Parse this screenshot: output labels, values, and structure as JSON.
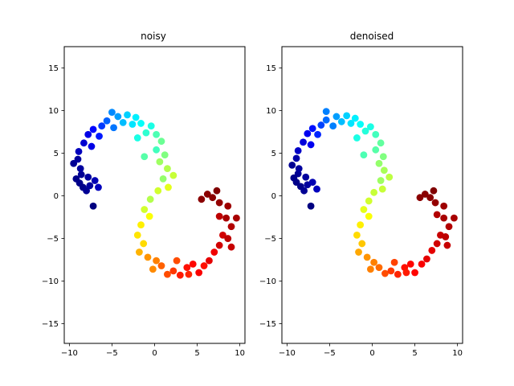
{
  "chart_data": [
    {
      "type": "scatter",
      "title": "noisy",
      "xlabel": "",
      "ylabel": "",
      "xlim": [
        -10.6,
        10.6
      ],
      "ylim": [
        -17.3,
        17.5
      ],
      "xticks": [
        -10,
        -5,
        0,
        5,
        10
      ],
      "yticks": [
        -15,
        -10,
        -5,
        0,
        5,
        10,
        15
      ],
      "xtick_labels": [
        "−10",
        "−5",
        "0",
        "5",
        "10"
      ],
      "ytick_labels": [
        "−15",
        "−10",
        "−5",
        "0",
        "5",
        "10",
        "15"
      ],
      "colormap": "jet",
      "grid": false,
      "legend": "none",
      "points": [
        {
          "x": -9.5,
          "y": 3.8,
          "c": 0.02
        },
        {
          "x": -9.0,
          "y": 4.3,
          "c": 0.03
        },
        {
          "x": -8.6,
          "y": 2.5,
          "c": 0.02
        },
        {
          "x": -8.8,
          "y": 1.5,
          "c": 0.01
        },
        {
          "x": -8.4,
          "y": 1.0,
          "c": 0.01
        },
        {
          "x": -8.0,
          "y": 0.6,
          "c": 0.02
        },
        {
          "x": -7.6,
          "y": 1.2,
          "c": 0.03
        },
        {
          "x": -7.2,
          "y": -1.2,
          "c": 0.0
        },
        {
          "x": -7.8,
          "y": 2.2,
          "c": 0.03
        },
        {
          "x": -9.2,
          "y": 2.0,
          "c": 0.01
        },
        {
          "x": -8.7,
          "y": 3.2,
          "c": 0.03
        },
        {
          "x": -7.0,
          "y": 1.8,
          "c": 0.05
        },
        {
          "x": -6.6,
          "y": 1.0,
          "c": 0.06
        },
        {
          "x": -8.9,
          "y": 5.2,
          "c": 0.06
        },
        {
          "x": -8.3,
          "y": 6.2,
          "c": 0.08
        },
        {
          "x": -7.8,
          "y": 7.2,
          "c": 0.1
        },
        {
          "x": -7.4,
          "y": 5.8,
          "c": 0.1
        },
        {
          "x": -7.2,
          "y": 7.8,
          "c": 0.13
        },
        {
          "x": -6.5,
          "y": 7.0,
          "c": 0.15
        },
        {
          "x": -6.2,
          "y": 8.2,
          "c": 0.18
        },
        {
          "x": -5.6,
          "y": 8.8,
          "c": 0.22
        },
        {
          "x": -5.0,
          "y": 9.8,
          "c": 0.26
        },
        {
          "x": -4.8,
          "y": 8.0,
          "c": 0.24
        },
        {
          "x": -4.3,
          "y": 9.3,
          "c": 0.28
        },
        {
          "x": -3.7,
          "y": 8.6,
          "c": 0.31
        },
        {
          "x": -3.2,
          "y": 9.5,
          "c": 0.33
        },
        {
          "x": -2.6,
          "y": 8.4,
          "c": 0.35
        },
        {
          "x": -2.2,
          "y": 9.2,
          "c": 0.36
        },
        {
          "x": -1.6,
          "y": 8.5,
          "c": 0.38
        },
        {
          "x": -1.0,
          "y": 7.4,
          "c": 0.42
        },
        {
          "x": -0.4,
          "y": 8.2,
          "c": 0.4
        },
        {
          "x": 0.2,
          "y": 7.2,
          "c": 0.45
        },
        {
          "x": 0.8,
          "y": 6.4,
          "c": 0.48
        },
        {
          "x": 0.2,
          "y": 5.4,
          "c": 0.44
        },
        {
          "x": 1.2,
          "y": 4.8,
          "c": 0.5
        },
        {
          "x": 0.6,
          "y": 4.0,
          "c": 0.53
        },
        {
          "x": 1.5,
          "y": 3.2,
          "c": 0.55
        },
        {
          "x": 2.2,
          "y": 2.4,
          "c": 0.57
        },
        {
          "x": 1.0,
          "y": 2.0,
          "c": 0.52
        },
        {
          "x": 1.6,
          "y": 1.0,
          "c": 0.6
        },
        {
          "x": 0.4,
          "y": 0.6,
          "c": 0.58
        },
        {
          "x": -0.5,
          "y": -0.4,
          "c": 0.55
        },
        {
          "x": -1.2,
          "y": -1.6,
          "c": 0.58
        },
        {
          "x": -0.6,
          "y": -2.4,
          "c": 0.62
        },
        {
          "x": -1.6,
          "y": -3.4,
          "c": 0.64
        },
        {
          "x": -2.0,
          "y": -4.6,
          "c": 0.65
        },
        {
          "x": -1.3,
          "y": -5.6,
          "c": 0.66
        },
        {
          "x": -1.8,
          "y": -6.6,
          "c": 0.7
        },
        {
          "x": -0.8,
          "y": -7.2,
          "c": 0.73
        },
        {
          "x": 0.2,
          "y": -7.6,
          "c": 0.75
        },
        {
          "x": -0.2,
          "y": -8.6,
          "c": 0.74
        },
        {
          "x": 0.8,
          "y": -8.2,
          "c": 0.78
        },
        {
          "x": 1.5,
          "y": -9.2,
          "c": 0.8
        },
        {
          "x": 2.2,
          "y": -8.8,
          "c": 0.82
        },
        {
          "x": 3.0,
          "y": -9.3,
          "c": 0.85
        },
        {
          "x": 3.8,
          "y": -8.4,
          "c": 0.86
        },
        {
          "x": 4.5,
          "y": -8.0,
          "c": 0.87
        },
        {
          "x": 5.2,
          "y": -9.0,
          "c": 0.88
        },
        {
          "x": 5.8,
          "y": -8.2,
          "c": 0.86
        },
        {
          "x": 6.4,
          "y": -7.6,
          "c": 0.9
        },
        {
          "x": 7.0,
          "y": -6.6,
          "c": 0.89
        },
        {
          "x": 7.6,
          "y": -5.8,
          "c": 0.92
        },
        {
          "x": 8.0,
          "y": -4.6,
          "c": 0.92
        },
        {
          "x": 8.6,
          "y": -5.0,
          "c": 0.94
        },
        {
          "x": 9.0,
          "y": -3.6,
          "c": 0.95
        },
        {
          "x": 8.4,
          "y": -2.6,
          "c": 0.96
        },
        {
          "x": 9.6,
          "y": -2.6,
          "c": 0.96
        },
        {
          "x": 7.6,
          "y": -2.4,
          "c": 0.94
        },
        {
          "x": 8.6,
          "y": -1.2,
          "c": 0.97
        },
        {
          "x": 7.6,
          "y": -0.8,
          "c": 0.98
        },
        {
          "x": 6.8,
          "y": -0.2,
          "c": 0.99
        },
        {
          "x": 7.3,
          "y": 0.6,
          "c": 1.0
        },
        {
          "x": 6.2,
          "y": 0.2,
          "c": 0.99
        },
        {
          "x": 5.5,
          "y": -0.4,
          "c": 0.99
        },
        {
          "x": 9.0,
          "y": -6.0,
          "c": 0.93
        },
        {
          "x": 4.0,
          "y": -9.2,
          "c": 0.84
        },
        {
          "x": 2.6,
          "y": -7.6,
          "c": 0.8
        },
        {
          "x": -2.0,
          "y": 6.8,
          "c": 0.4
        },
        {
          "x": -1.2,
          "y": 4.6,
          "c": 0.46
        }
      ]
    },
    {
      "type": "scatter",
      "title": "denoised",
      "xlabel": "",
      "ylabel": "",
      "xlim": [
        -10.6,
        10.6
      ],
      "ylim": [
        -17.3,
        17.5
      ],
      "xticks": [
        -10,
        -5,
        0,
        5,
        10
      ],
      "yticks": [
        -15,
        -10,
        -5,
        0,
        5,
        10,
        15
      ],
      "xtick_labels": [
        "−10",
        "−5",
        "0",
        "5",
        "10"
      ],
      "ytick_labels": [
        "−15",
        "−10",
        "−5",
        "0",
        "5",
        "10",
        "15"
      ],
      "colormap": "jet",
      "grid": false,
      "legend": "none",
      "points": [
        {
          "x": -9.4,
          "y": 3.6,
          "c": 0.02
        },
        {
          "x": -8.9,
          "y": 4.4,
          "c": 0.04
        },
        {
          "x": -8.7,
          "y": 2.6,
          "c": 0.02
        },
        {
          "x": -8.9,
          "y": 1.6,
          "c": 0.01
        },
        {
          "x": -8.4,
          "y": 1.1,
          "c": 0.01
        },
        {
          "x": -8.0,
          "y": 0.6,
          "c": 0.02
        },
        {
          "x": -7.6,
          "y": 1.3,
          "c": 0.03
        },
        {
          "x": -7.2,
          "y": -1.2,
          "c": 0.0
        },
        {
          "x": -7.8,
          "y": 2.2,
          "c": 0.03
        },
        {
          "x": -9.2,
          "y": 2.1,
          "c": 0.01
        },
        {
          "x": -8.6,
          "y": 3.2,
          "c": 0.03
        },
        {
          "x": -7.0,
          "y": 1.6,
          "c": 0.05
        },
        {
          "x": -6.5,
          "y": 0.8,
          "c": 0.06
        },
        {
          "x": -8.7,
          "y": 5.3,
          "c": 0.07
        },
        {
          "x": -8.1,
          "y": 6.3,
          "c": 0.09
        },
        {
          "x": -7.6,
          "y": 7.3,
          "c": 0.11
        },
        {
          "x": -7.2,
          "y": 6.0,
          "c": 0.11
        },
        {
          "x": -7.0,
          "y": 7.9,
          "c": 0.14
        },
        {
          "x": -6.4,
          "y": 7.2,
          "c": 0.16
        },
        {
          "x": -6.0,
          "y": 8.3,
          "c": 0.19
        },
        {
          "x": -5.4,
          "y": 8.9,
          "c": 0.23
        },
        {
          "x": -5.4,
          "y": 9.9,
          "c": 0.25
        },
        {
          "x": -4.6,
          "y": 8.2,
          "c": 0.25
        },
        {
          "x": -4.2,
          "y": 9.3,
          "c": 0.28
        },
        {
          "x": -3.6,
          "y": 8.7,
          "c": 0.31
        },
        {
          "x": -3.0,
          "y": 9.4,
          "c": 0.33
        },
        {
          "x": -2.5,
          "y": 8.5,
          "c": 0.35
        },
        {
          "x": -2.0,
          "y": 9.1,
          "c": 0.36
        },
        {
          "x": -1.4,
          "y": 8.4,
          "c": 0.38
        },
        {
          "x": -0.8,
          "y": 7.6,
          "c": 0.41
        },
        {
          "x": -0.2,
          "y": 8.1,
          "c": 0.4
        },
        {
          "x": 0.4,
          "y": 7.2,
          "c": 0.44
        },
        {
          "x": 1.0,
          "y": 6.2,
          "c": 0.47
        },
        {
          "x": 0.4,
          "y": 5.4,
          "c": 0.46
        },
        {
          "x": 1.3,
          "y": 4.6,
          "c": 0.5
        },
        {
          "x": 0.8,
          "y": 3.8,
          "c": 0.52
        },
        {
          "x": 1.4,
          "y": 3.0,
          "c": 0.54
        },
        {
          "x": 2.0,
          "y": 2.2,
          "c": 0.56
        },
        {
          "x": 1.0,
          "y": 1.8,
          "c": 0.53
        },
        {
          "x": 1.2,
          "y": 0.8,
          "c": 0.57
        },
        {
          "x": 0.2,
          "y": 0.4,
          "c": 0.57
        },
        {
          "x": -0.4,
          "y": -0.6,
          "c": 0.58
        },
        {
          "x": -1.0,
          "y": -1.6,
          "c": 0.6
        },
        {
          "x": -0.4,
          "y": -2.4,
          "c": 0.62
        },
        {
          "x": -1.4,
          "y": -3.4,
          "c": 0.64
        },
        {
          "x": -1.8,
          "y": -4.6,
          "c": 0.66
        },
        {
          "x": -1.2,
          "y": -5.6,
          "c": 0.68
        },
        {
          "x": -1.6,
          "y": -6.6,
          "c": 0.71
        },
        {
          "x": -0.6,
          "y": -7.2,
          "c": 0.73
        },
        {
          "x": 0.2,
          "y": -7.8,
          "c": 0.75
        },
        {
          "x": -0.2,
          "y": -8.6,
          "c": 0.75
        },
        {
          "x": 0.8,
          "y": -8.4,
          "c": 0.77
        },
        {
          "x": 1.5,
          "y": -9.1,
          "c": 0.8
        },
        {
          "x": 2.2,
          "y": -8.8,
          "c": 0.82
        },
        {
          "x": 3.0,
          "y": -9.2,
          "c": 0.84
        },
        {
          "x": 3.8,
          "y": -8.4,
          "c": 0.86
        },
        {
          "x": 4.5,
          "y": -8.0,
          "c": 0.87
        },
        {
          "x": 5.0,
          "y": -9.0,
          "c": 0.87
        },
        {
          "x": 5.8,
          "y": -8.0,
          "c": 0.88
        },
        {
          "x": 6.4,
          "y": -7.4,
          "c": 0.9
        },
        {
          "x": 7.0,
          "y": -6.4,
          "c": 0.9
        },
        {
          "x": 7.6,
          "y": -5.6,
          "c": 0.92
        },
        {
          "x": 8.0,
          "y": -4.6,
          "c": 0.93
        },
        {
          "x": 8.6,
          "y": -4.8,
          "c": 0.94
        },
        {
          "x": 9.0,
          "y": -3.6,
          "c": 0.95
        },
        {
          "x": 8.4,
          "y": -2.6,
          "c": 0.96
        },
        {
          "x": 9.6,
          "y": -2.6,
          "c": 0.96
        },
        {
          "x": 7.6,
          "y": -2.2,
          "c": 0.95
        },
        {
          "x": 8.4,
          "y": -1.2,
          "c": 0.97
        },
        {
          "x": 7.4,
          "y": -0.8,
          "c": 0.98
        },
        {
          "x": 6.8,
          "y": -0.2,
          "c": 0.99
        },
        {
          "x": 7.2,
          "y": 0.6,
          "c": 1.0
        },
        {
          "x": 6.2,
          "y": 0.2,
          "c": 0.99
        },
        {
          "x": 5.6,
          "y": -0.2,
          "c": 0.99
        },
        {
          "x": 8.8,
          "y": -5.8,
          "c": 0.93
        },
        {
          "x": 4.0,
          "y": -9.0,
          "c": 0.85
        },
        {
          "x": 2.6,
          "y": -7.8,
          "c": 0.81
        },
        {
          "x": -1.8,
          "y": 6.8,
          "c": 0.4
        },
        {
          "x": -1.0,
          "y": 4.8,
          "c": 0.45
        }
      ]
    }
  ]
}
